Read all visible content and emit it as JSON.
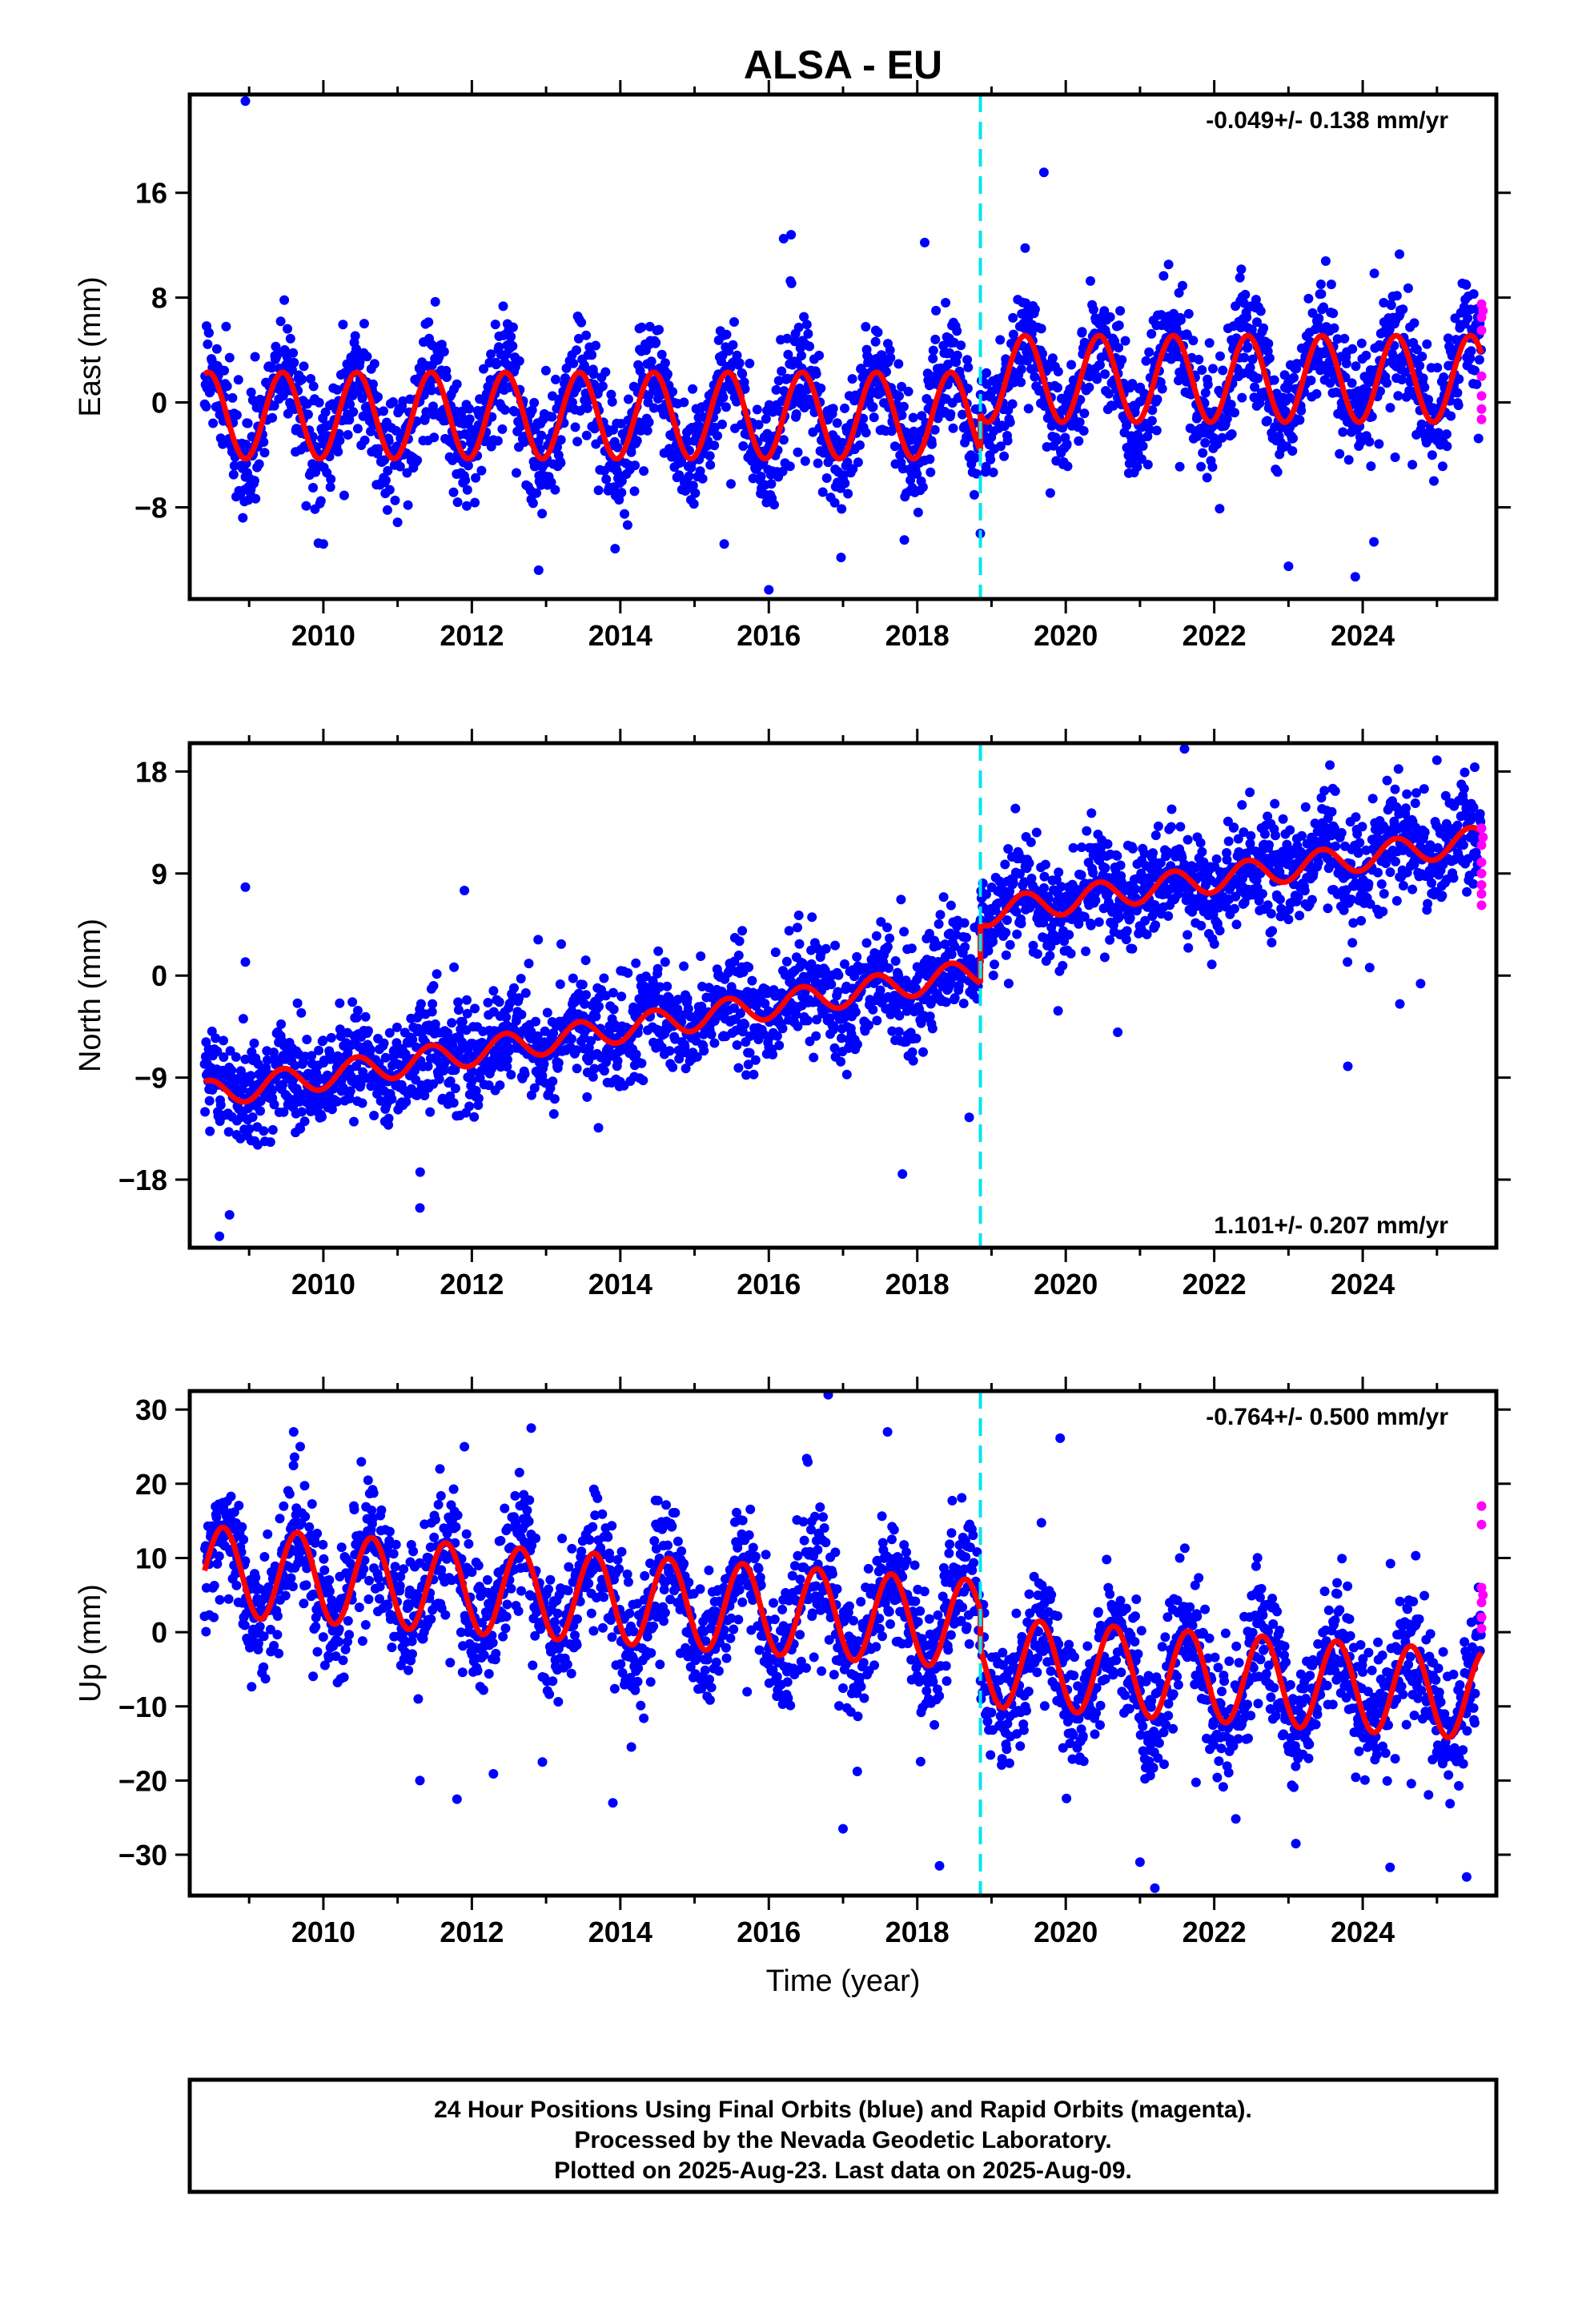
{
  "title": "ALSA - EU",
  "xlabel": "Time (year)",
  "colors": {
    "final_orbits": "#0000ff",
    "rapid_orbits": "#ff00ff",
    "model": "#ff0000",
    "event_line": "#00e5ee"
  },
  "footer": {
    "line1": "24 Hour Positions Using Final Orbits (blue) and Rapid Orbits (magenta).",
    "line2": "Processed by the Nevada Geodetic Laboratory.",
    "line3": "Plotted on 2025-Aug-23. Last data on 2025-Aug-09."
  },
  "chart_data": [
    {
      "type": "scatter",
      "component": "East",
      "ylabel": "East (mm)",
      "rate_label": "-0.049+/- 0.138 mm/yr",
      "rate_position": "top-right",
      "xlim": [
        2008.2,
        2025.8
      ],
      "ylim": [
        -15,
        23.5
      ],
      "xticks": [
        2010,
        2012,
        2014,
        2016,
        2018,
        2020,
        2022,
        2024
      ],
      "yticks": [
        -8,
        0,
        8,
        16
      ],
      "event_line_x": 2018.85,
      "model": {
        "segments": [
          {
            "x_start": 2008.4,
            "x_end": 2018.85,
            "offset_start": -1.0,
            "offset_end": -1.0,
            "amplitude": 3.3
          },
          {
            "x_start": 2018.85,
            "x_end": 2025.6,
            "offset_start": 1.8,
            "offset_end": 1.8,
            "amplitude": 3.3
          }
        ],
        "peak_phase": 0.45
      },
      "scatter": {
        "count": 2600,
        "noise_sd": 2.1
      },
      "outliers": [
        [
          2008.95,
          23.0
        ],
        [
          2016.2,
          12.5
        ],
        [
          2016.3,
          12.8
        ],
        [
          2018.1,
          12.2
        ],
        [
          2016.0,
          -14.3
        ],
        [
          2010.0,
          -10.8
        ],
        [
          2012.9,
          -12.8
        ],
        [
          2015.4,
          -10.8
        ],
        [
          2023.0,
          -12.5
        ],
        [
          2023.9,
          -13.3
        ],
        [
          2018.85,
          -10.0
        ]
      ],
      "rapid_points": [
        [
          2025.6,
          7.5
        ],
        [
          2025.6,
          6.5
        ],
        [
          2025.6,
          5.5
        ],
        [
          2025.6,
          2.0
        ],
        [
          2025.6,
          0.5
        ],
        [
          2025.6,
          -0.5
        ],
        [
          2025.6,
          -1.3
        ],
        [
          2025.62,
          7.0
        ]
      ]
    },
    {
      "type": "scatter",
      "component": "North",
      "ylabel": "North (mm)",
      "rate_label": "1.101+/- 0.207 mm/yr",
      "rate_position": "bottom-right",
      "xlim": [
        2008.2,
        2025.8
      ],
      "ylim": [
        -24,
        20.5
      ],
      "xticks": [
        2010,
        2012,
        2014,
        2016,
        2018,
        2020,
        2022,
        2024
      ],
      "yticks": [
        -18,
        -9,
        0,
        9,
        18
      ],
      "event_line_x": 2018.85,
      "model": {
        "segments": [
          {
            "x_start": 2008.4,
            "x_end": 2018.85,
            "offset_start": -10.5,
            "offset_end": 0.3,
            "amplitude": 1.2
          },
          {
            "x_start": 2018.85,
            "x_end": 2025.6,
            "offset_start": 5.5,
            "offset_end": 12.0,
            "amplitude": 1.2
          }
        ],
        "peak_phase": 0.45
      },
      "scatter": {
        "count": 2600,
        "noise_sd": 2.2
      },
      "outliers": [
        [
          2008.95,
          7.8
        ],
        [
          2008.95,
          1.2
        ],
        [
          2008.6,
          -23.0
        ],
        [
          2011.9,
          7.5
        ],
        [
          2011.3,
          -20.5
        ],
        [
          2020.7,
          -5.0
        ],
        [
          2023.8,
          -8.0
        ],
        [
          2024.5,
          -2.5
        ],
        [
          2021.6,
          20.0
        ],
        [
          2025.0,
          19.0
        ],
        [
          2017.8,
          -17.5
        ],
        [
          2018.7,
          -12.5
        ]
      ],
      "rapid_points": [
        [
          2025.6,
          13.0
        ],
        [
          2025.6,
          11.5
        ],
        [
          2025.6,
          10.0
        ],
        [
          2025.6,
          9.0
        ],
        [
          2025.6,
          8.0
        ],
        [
          2025.6,
          7.2
        ],
        [
          2025.6,
          6.2
        ],
        [
          2025.62,
          12.2
        ]
      ]
    },
    {
      "type": "scatter",
      "component": "Up",
      "ylabel": "Up (mm)",
      "rate_label": "-0.764+/- 0.500 mm/yr",
      "rate_position": "top-right",
      "xlim": [
        2008.2,
        2025.8
      ],
      "ylim": [
        -35.5,
        32.5
      ],
      "xticks": [
        2010,
        2012,
        2014,
        2016,
        2018,
        2020,
        2022,
        2024
      ],
      "yticks": [
        -30,
        -20,
        -10,
        0,
        10,
        20,
        30
      ],
      "event_line_x": 2018.85,
      "model": {
        "segments": [
          {
            "x_start": 2008.4,
            "x_end": 2018.85,
            "offset_start": 8.3,
            "offset_end": 1.0,
            "amplitude": 6.0
          },
          {
            "x_start": 2018.85,
            "x_end": 2025.6,
            "offset_start": -4.0,
            "offset_end": -8.5,
            "amplitude": 6.0
          }
        ],
        "peak_phase": 0.65
      },
      "scatter": {
        "count": 2600,
        "noise_sd": 4.2
      },
      "outliers": [
        [
          2016.8,
          32.0
        ],
        [
          2017.6,
          27.0
        ],
        [
          2009.6,
          27.0
        ],
        [
          2012.8,
          27.5
        ],
        [
          2011.9,
          25.0
        ],
        [
          2018.3,
          -31.5
        ],
        [
          2021.2,
          -34.5
        ],
        [
          2025.4,
          -33.0
        ],
        [
          2013.9,
          -23.0
        ],
        [
          2011.8,
          -22.5
        ],
        [
          2017.0,
          -26.5
        ],
        [
          2021.0,
          -31.0
        ],
        [
          2023.1,
          -28.5
        ],
        [
          2012.95,
          -17.5
        ],
        [
          2011.3,
          -20.0
        ]
      ],
      "rapid_points": [
        [
          2025.6,
          17.0
        ],
        [
          2025.6,
          14.5
        ],
        [
          2025.6,
          6.0
        ],
        [
          2025.6,
          4.0
        ],
        [
          2025.6,
          2.0
        ],
        [
          2025.6,
          0.5
        ],
        [
          2025.62,
          5.0
        ]
      ]
    }
  ]
}
